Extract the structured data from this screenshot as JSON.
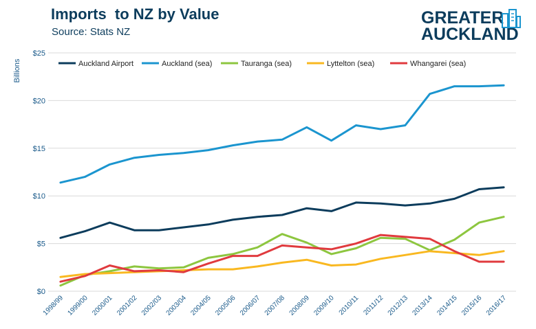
{
  "header": {
    "title": "Imports  to NZ by Value",
    "subtitle": "Source: Stats NZ"
  },
  "logo": {
    "line1": "GREATER",
    "line2": "AUCKLAND",
    "icon": "city-buildings-icon"
  },
  "colors": {
    "axis_text": "#1a5a8a",
    "grid": "#d9d9d9"
  },
  "chart_data": {
    "type": "line",
    "ylabel": "Billions",
    "ylim": [
      0,
      25
    ],
    "yticks": [
      0,
      5,
      10,
      15,
      20,
      25
    ],
    "ytick_labels": [
      "$0",
      "$5",
      "$10",
      "$15",
      "$20",
      "$25"
    ],
    "grid": true,
    "legend_position": "top",
    "categories": [
      "1998/99",
      "1999/00",
      "2000/01",
      "2001/02",
      "2002/03",
      "2003/04",
      "2004/05",
      "2005/06",
      "2006/07",
      "2007/08",
      "2008/09",
      "2009/10",
      "2010/11",
      "2011/12",
      "2012/13",
      "2013/14",
      "2014/15",
      "2015/16",
      "2016/17"
    ],
    "series": [
      {
        "name": "Auckland Airport",
        "color": "#0c3c5c",
        "values": [
          5.6,
          6.3,
          7.2,
          6.4,
          6.4,
          6.7,
          7.0,
          7.5,
          7.8,
          8.0,
          8.7,
          8.4,
          9.3,
          9.2,
          9.0,
          9.2,
          9.7,
          10.7,
          10.9
        ]
      },
      {
        "name": "Auckland (sea)",
        "color": "#1b95cf",
        "values": [
          11.4,
          12.0,
          13.3,
          14.0,
          14.3,
          14.5,
          14.8,
          15.3,
          15.7,
          15.9,
          17.2,
          15.8,
          17.4,
          17.0,
          17.4,
          20.7,
          21.5,
          21.5,
          21.6
        ]
      },
      {
        "name": "Tauranga (sea)",
        "color": "#8dc63f",
        "values": [
          0.6,
          1.7,
          2.1,
          2.6,
          2.4,
          2.5,
          3.5,
          3.9,
          4.6,
          6.0,
          5.1,
          3.9,
          4.5,
          5.6,
          5.5,
          4.3,
          5.4,
          7.2,
          7.8
        ]
      },
      {
        "name": "Lyttelton (sea)",
        "color": "#f9b820",
        "values": [
          1.5,
          1.8,
          1.9,
          2.0,
          2.1,
          2.2,
          2.3,
          2.3,
          2.6,
          3.0,
          3.3,
          2.7,
          2.8,
          3.4,
          3.8,
          4.2,
          4.0,
          3.8,
          4.2
        ]
      },
      {
        "name": "Whangarei (sea)",
        "color": "#e03a3e",
        "values": [
          1.0,
          1.6,
          2.7,
          2.1,
          2.2,
          2.0,
          2.9,
          3.7,
          3.7,
          4.8,
          4.6,
          4.4,
          5.0,
          5.9,
          5.7,
          5.5,
          4.2,
          3.1,
          3.1
        ]
      }
    ]
  }
}
